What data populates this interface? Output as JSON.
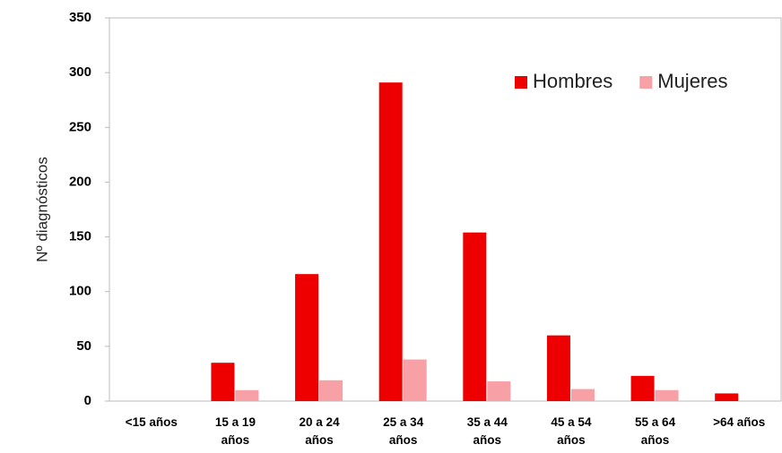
{
  "chart_data": {
    "type": "bar",
    "y_label": "Nº diagnósticos",
    "categories": [
      "<15 años",
      "15 a 19 años",
      "20 a 24 años",
      "25 a 34 años",
      "35 a 44 años",
      "45 a 54 años",
      "55 a 64 años",
      ">64 años"
    ],
    "series": [
      {
        "name": "Hombres",
        "color": "#ee0000",
        "values": [
          0,
          35,
          116,
          291,
          154,
          60,
          23,
          7
        ]
      },
      {
        "name": "Mujeres",
        "color": "#f7a0a6",
        "values": [
          0,
          10,
          19,
          38,
          18,
          11,
          10,
          0
        ]
      }
    ],
    "ylim": [
      0,
      350
    ],
    "yticks": [
      0,
      50,
      100,
      150,
      200,
      250,
      300,
      350
    ],
    "legend": "upper right"
  }
}
